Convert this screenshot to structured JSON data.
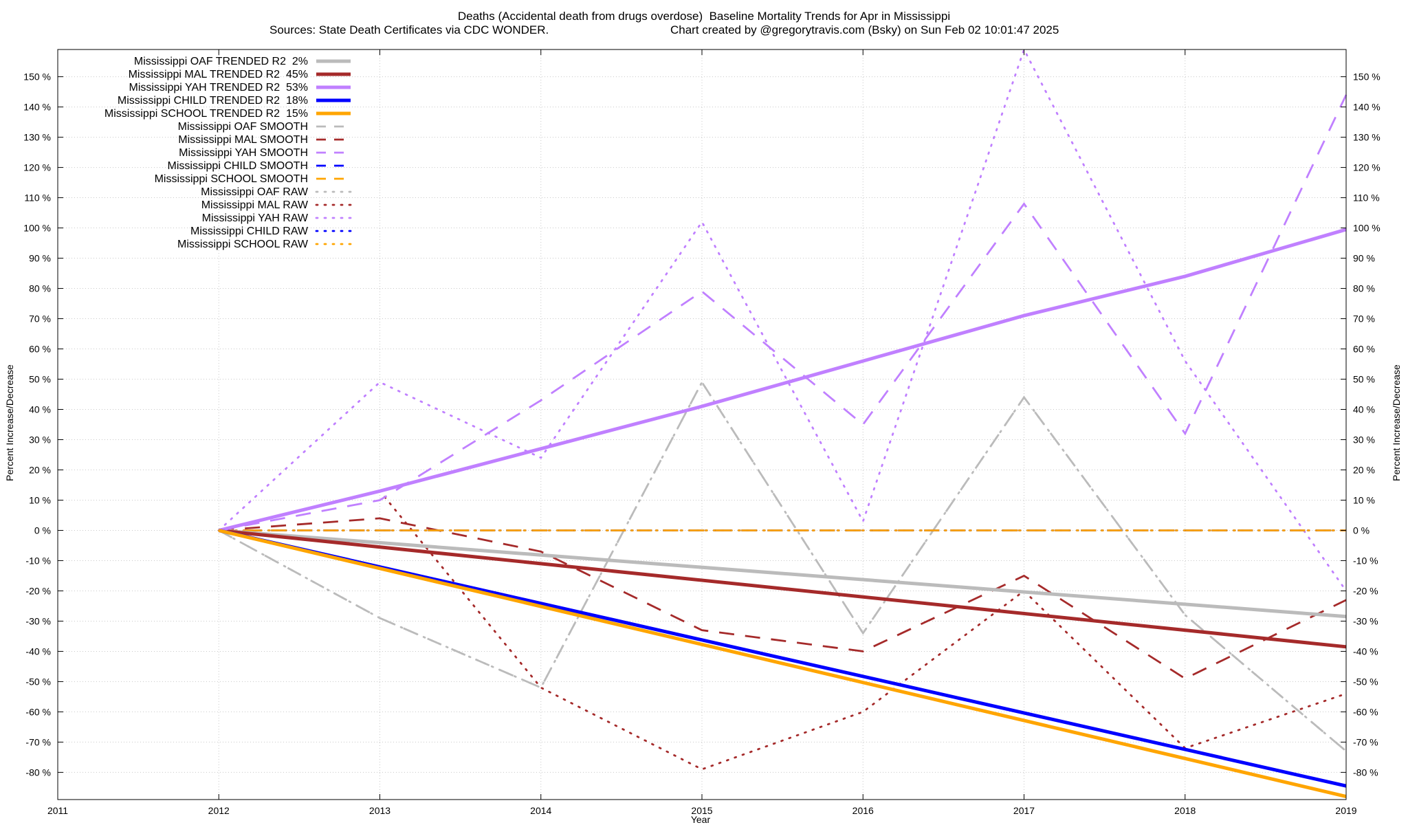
{
  "title": "Deaths (Accidental death from drugs overdose)  Baseline Mortality Trends for Apr in Mississippi",
  "subtitle_left": "Sources: State Death Certificates via CDC WONDER.",
  "subtitle_right": "Chart created by @gregorytravis.com (Bsky) on Sun Feb 02 10:01:47 2025",
  "chart_data": {
    "type": "line",
    "title": "Deaths (Accidental death from drugs overdose)  Baseline Mortality Trends for Apr in Mississippi",
    "xlabel": "Year",
    "ylabel": "Percent Increase/Decrease",
    "y2label": "Percent Increase/Decrease",
    "xlim": [
      2011,
      2019
    ],
    "ylim": [
      -89,
      159
    ],
    "x_ticks": [
      "2011",
      "2012",
      "2013",
      "2014",
      "2015",
      "2016",
      "2017",
      "2018",
      "2019"
    ],
    "y_ticks": [
      {
        "value": 150,
        "label": "150 %"
      },
      {
        "value": 140,
        "label": "140 %"
      },
      {
        "value": 130,
        "label": "130 %"
      },
      {
        "value": 120,
        "label": "120 %"
      },
      {
        "value": 110,
        "label": "110 %"
      },
      {
        "value": 100,
        "label": "100 %"
      },
      {
        "value": 90,
        "label": "90 %"
      },
      {
        "value": 80,
        "label": "80 %"
      },
      {
        "value": 70,
        "label": "70 %"
      },
      {
        "value": 60,
        "label": "60 %"
      },
      {
        "value": 50,
        "label": "50 %"
      },
      {
        "value": 40,
        "label": "40 %"
      },
      {
        "value": 30,
        "label": "30 %"
      },
      {
        "value": 20,
        "label": "20 %"
      },
      {
        "value": 10,
        "label": "10 %"
      },
      {
        "value": 0,
        "label": "0 %"
      },
      {
        "value": -10,
        "label": "-10 %"
      },
      {
        "value": -20,
        "label": "-20 %"
      },
      {
        "value": -30,
        "label": "-30 %"
      },
      {
        "value": -40,
        "label": "-40 %"
      },
      {
        "value": -50,
        "label": "-50 %"
      },
      {
        "value": -60,
        "label": "-60 %"
      },
      {
        "value": -70,
        "label": "-70 %"
      },
      {
        "value": -80,
        "label": "-80 %"
      }
    ],
    "grid": true,
    "legend_position": "top-left",
    "series": [
      {
        "name": "Mississippi OAF TRENDED R2  2%",
        "style": "solid",
        "color": "#bbbbbb",
        "x": [
          2012,
          2019
        ],
        "values": [
          0,
          -28.5
        ]
      },
      {
        "name": "Mississippi MAL TRENDED R2  45%",
        "style": "solid",
        "color": "#a52a2a",
        "x": [
          2012,
          2019
        ],
        "values": [
          0,
          -38.5
        ]
      },
      {
        "name": "Mississippi YAH TRENDED R2  53%",
        "style": "solid",
        "color": "#c080ff",
        "x": [
          2012,
          2013,
          2014,
          2015,
          2016,
          2017,
          2018,
          2019
        ],
        "values": [
          0,
          13,
          27,
          41,
          56,
          71,
          84,
          99.5
        ]
      },
      {
        "name": "Mississippi CHILD TRENDED R2  18%",
        "style": "solid",
        "color": "#0000ff",
        "x": [
          2012,
          2019
        ],
        "values": [
          0,
          -84.5
        ]
      },
      {
        "name": "Mississippi SCHOOL TRENDED R2  15%",
        "style": "solid",
        "color": "#ffa500",
        "x": [
          2012,
          2019
        ],
        "values": [
          0,
          -88
        ]
      },
      {
        "name": "Mississippi OAF SMOOTH",
        "style": "dashed",
        "color": "#bbbbbb",
        "x": [
          2012,
          2013,
          2014,
          2015,
          2016,
          2017,
          2018,
          2019
        ],
        "values": [
          0,
          -29,
          -52,
          49,
          -34,
          44,
          -28,
          -73
        ]
      },
      {
        "name": "Mississippi MAL SMOOTH",
        "style": "dashed",
        "color": "#a52a2a",
        "x": [
          2012,
          2013,
          2014,
          2015,
          2016,
          2017,
          2018,
          2019
        ],
        "values": [
          0,
          4,
          -7,
          -33,
          -40,
          -15,
          -49,
          -23
        ]
      },
      {
        "name": "Mississippi YAH SMOOTH",
        "style": "dashed",
        "color": "#c080ff",
        "x": [
          2012,
          2013,
          2014,
          2015,
          2016,
          2017,
          2018,
          2019
        ],
        "values": [
          0,
          10,
          43,
          79,
          35,
          108,
          32,
          144
        ]
      },
      {
        "name": "Mississippi CHILD SMOOTH",
        "style": "dashed",
        "color": "#0000ff",
        "x": [
          2012,
          2019
        ],
        "values": [
          0,
          0
        ]
      },
      {
        "name": "Mississippi SCHOOL SMOOTH",
        "style": "dashed",
        "color": "#ffa500",
        "x": [
          2012,
          2019
        ],
        "values": [
          0,
          0
        ]
      },
      {
        "name": "Mississippi OAF RAW",
        "style": "dotted",
        "color": "#bbbbbb",
        "x": [
          2012,
          2013,
          2014,
          2015,
          2016,
          2017,
          2018,
          2019
        ],
        "values": [
          0,
          -29,
          -52,
          49,
          -34,
          44,
          -28,
          -73
        ]
      },
      {
        "name": "Mississippi MAL RAW",
        "style": "dotted",
        "color": "#a52a2a",
        "x": [
          2012,
          2013,
          2014,
          2015,
          2016,
          2017,
          2018,
          2019
        ],
        "values": [
          0,
          13,
          -52,
          -79,
          -60,
          -20,
          -72,
          -54
        ]
      },
      {
        "name": "Mississippi YAH RAW",
        "style": "dotted",
        "color": "#c080ff",
        "x": [
          2012,
          2013,
          2014,
          2015,
          2016,
          2017,
          2018,
          2019
        ],
        "values": [
          0,
          49,
          24,
          102,
          3,
          159,
          56,
          -20
        ]
      },
      {
        "name": "Mississippi CHILD RAW",
        "style": "dotted",
        "color": "#0000ff",
        "x": [
          2012,
          2019
        ],
        "values": [
          0,
          0
        ]
      },
      {
        "name": "Mississippi SCHOOL RAW",
        "style": "dotted",
        "color": "#ffa500",
        "x": [
          2012,
          2019
        ],
        "values": [
          0,
          0
        ]
      }
    ]
  }
}
